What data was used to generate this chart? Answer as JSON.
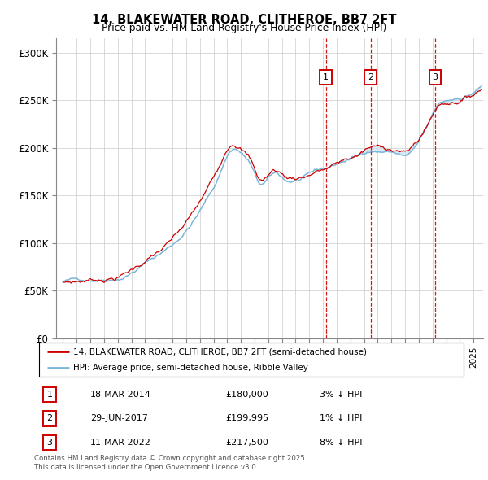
{
  "title1": "14, BLAKEWATER ROAD, CLITHEROE, BB7 2FT",
  "title2": "Price paid vs. HM Land Registry's House Price Index (HPI)",
  "legend_line1": "14, BLAKEWATER ROAD, CLITHEROE, BB7 2FT (semi-detached house)",
  "legend_line2": "HPI: Average price, semi-detached house, Ribble Valley",
  "transactions": [
    {
      "num": 1,
      "date": "18-MAR-2014",
      "price": 180000,
      "hpi_diff": "3% ↓ HPI",
      "x_year": 2014.21
    },
    {
      "num": 2,
      "date": "29-JUN-2017",
      "price": 199995,
      "hpi_diff": "1% ↓ HPI",
      "x_year": 2017.49
    },
    {
      "num": 3,
      "date": "11-MAR-2022",
      "price": 217500,
      "hpi_diff": "8% ↓ HPI",
      "x_year": 2022.19
    }
  ],
  "hpi_color": "#7ab6d9",
  "price_color": "#cc0000",
  "marker_color": "#cc0000",
  "shaded_color": "#cce0f0",
  "ylabel_ticks": [
    "£0",
    "£50K",
    "£100K",
    "£150K",
    "£200K",
    "£250K",
    "£300K"
  ],
  "ytick_vals": [
    0,
    50000,
    100000,
    150000,
    200000,
    250000,
    300000
  ],
  "ylim": [
    0,
    315000
  ],
  "xlim_start": 1994.5,
  "xlim_end": 2025.7,
  "footnote": "Contains HM Land Registry data © Crown copyright and database right 2025.\nThis data is licensed under the Open Government Licence v3.0.",
  "background_color": "#ffffff",
  "grid_color": "#cccccc"
}
